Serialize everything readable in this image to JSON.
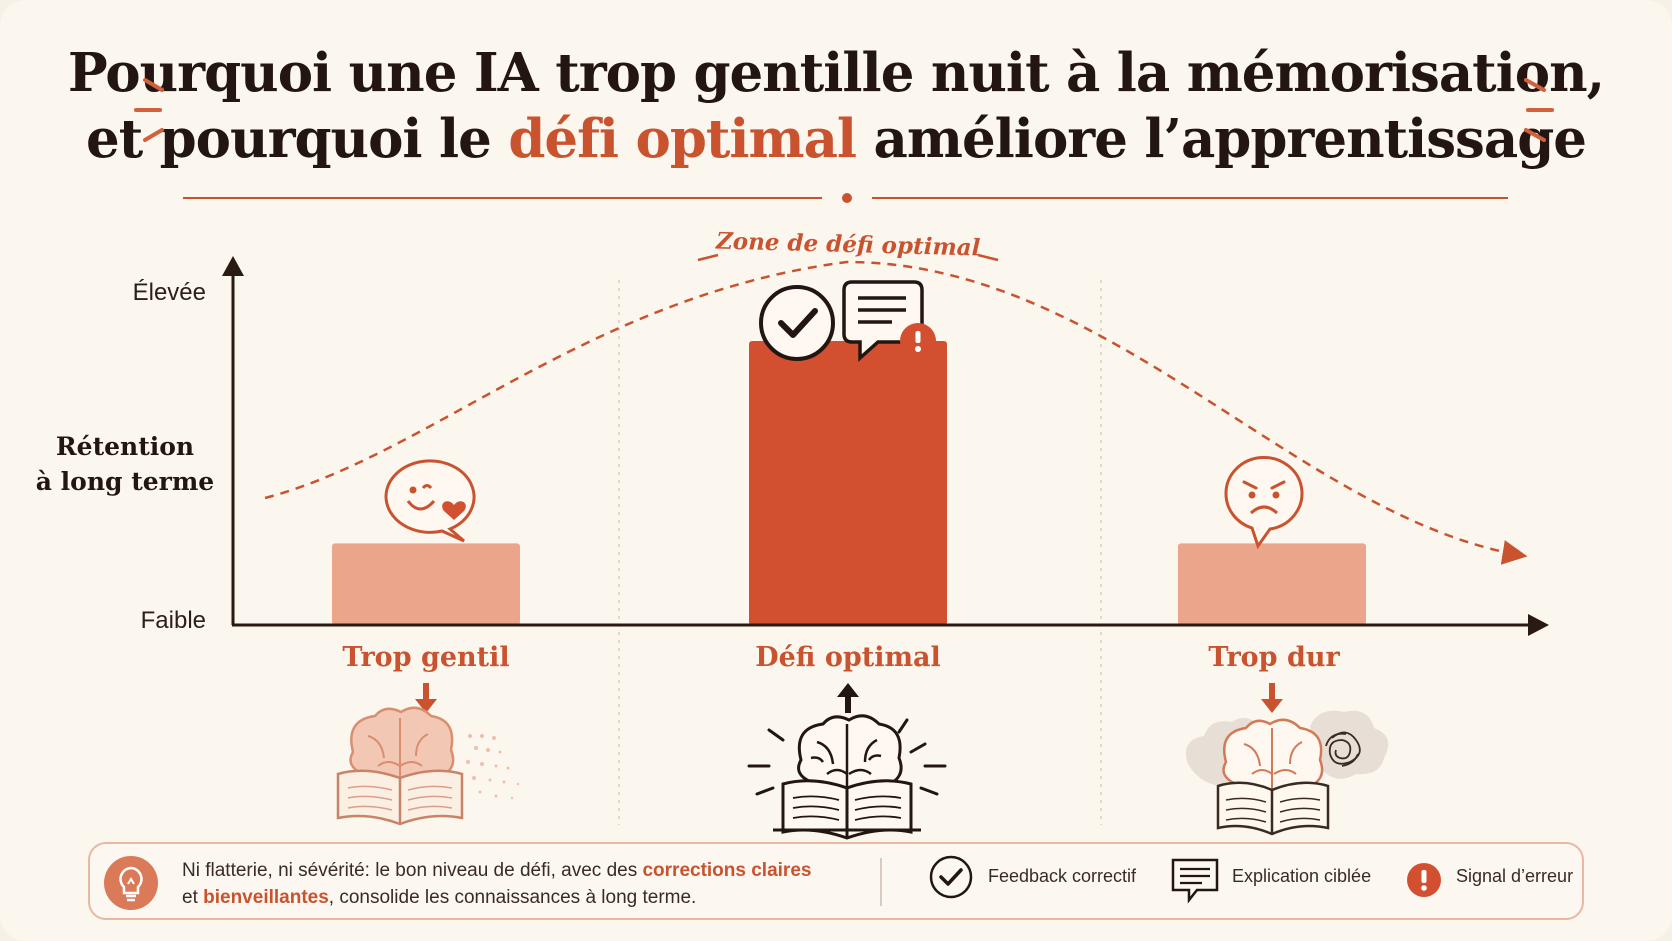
{
  "title": {
    "line1": "Pourquoi une IA trop gentille nuit à la mémorisation,",
    "line2_prefix": "et pourquoi le ",
    "line2_accent": "défi optimal",
    "line2_suffix": " améliore l’apprentissage"
  },
  "chart_data": {
    "type": "bar",
    "title": "",
    "ylabel": "Rétention à long terme",
    "ylabel_lines": [
      "Rétention",
      "à long terme"
    ],
    "y_ticks": [
      "Élevée",
      "Faible"
    ],
    "categories": [
      "Trop gentil",
      "Défi optimal",
      "Trop dur"
    ],
    "values": [
      0.23,
      0.8,
      0.23
    ],
    "ylim": [
      0,
      1
    ],
    "bar_colors": [
      "#eba58b",
      "#d24f2f",
      "#eba58b"
    ],
    "curve_label": "Zone de défi optimal",
    "arrows": [
      "down",
      "up",
      "down"
    ],
    "grid": false
  },
  "footer": {
    "text_1": "Ni flatterie, ni sévérité: le bon niveau de défi, avec des ",
    "text_hl1": "corrections claires",
    "text_2": "et ",
    "text_hl2": "bienveillantes",
    "text_3": ", consolide les connaissances à long terme.",
    "legend": [
      {
        "icon": "check-circle-icon",
        "label": "Feedback correctif"
      },
      {
        "icon": "speech-bubble-icon",
        "label": "Explication ciblée"
      },
      {
        "icon": "alert-icon",
        "label": "Signal d’erreur"
      }
    ]
  },
  "colors": {
    "accent": "#c9532f",
    "bar_main": "#d24f2f",
    "bar_light": "#eba58b",
    "ink": "#231612"
  }
}
